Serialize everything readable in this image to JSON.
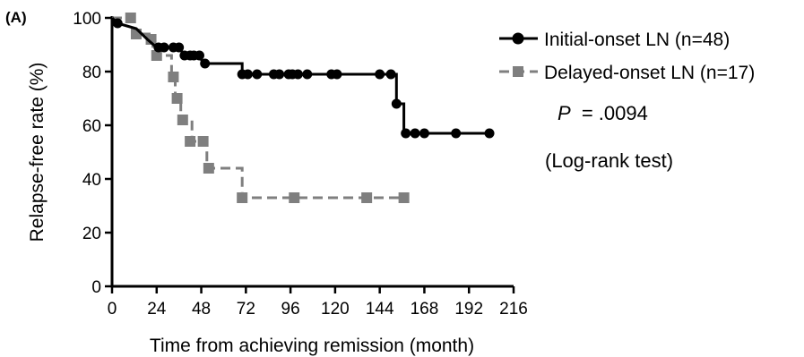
{
  "chart_data": {
    "type": "line",
    "panel_label": "(A)",
    "xlabel": "Time from achieving remission (month)",
    "ylabel": "Relapse-free rate (%)",
    "xlim": [
      0,
      216
    ],
    "ylim": [
      0,
      100
    ],
    "xticks": [
      0,
      24,
      48,
      72,
      96,
      120,
      144,
      168,
      192,
      216
    ],
    "yticks": [
      0,
      20,
      40,
      60,
      80,
      100
    ],
    "legend_position": "top-right",
    "grid": false,
    "series": [
      {
        "name": "Initial-onset LN (n=48)",
        "style": "solid",
        "marker": "circle",
        "color": "#000000",
        "step_points": [
          [
            0,
            100
          ],
          [
            3,
            98
          ],
          [
            13,
            96
          ],
          [
            19,
            92
          ],
          [
            24,
            89
          ],
          [
            35,
            89
          ],
          [
            40,
            86
          ],
          [
            47,
            86
          ],
          [
            49,
            83
          ],
          [
            70,
            83
          ],
          [
            70,
            79
          ],
          [
            153,
            79
          ],
          [
            153,
            68
          ],
          [
            157,
            68
          ],
          [
            157,
            57
          ],
          [
            203,
            57
          ]
        ],
        "censored": [
          [
            3,
            98
          ],
          [
            25,
            89
          ],
          [
            28,
            89
          ],
          [
            33,
            89
          ],
          [
            36,
            89
          ],
          [
            39,
            86
          ],
          [
            42,
            86
          ],
          [
            44,
            86
          ],
          [
            47,
            86
          ],
          [
            50,
            83
          ],
          [
            70,
            79
          ],
          [
            73,
            79
          ],
          [
            78,
            79
          ],
          [
            87,
            79
          ],
          [
            90,
            79
          ],
          [
            95,
            79
          ],
          [
            97,
            79
          ],
          [
            100,
            79
          ],
          [
            105,
            79
          ],
          [
            118,
            79
          ],
          [
            121,
            79
          ],
          [
            144,
            79
          ],
          [
            150,
            79
          ],
          [
            153,
            68
          ],
          [
            158,
            57
          ],
          [
            163,
            57
          ],
          [
            168,
            57
          ],
          [
            185,
            57
          ],
          [
            203,
            57
          ]
        ]
      },
      {
        "name": "Delayed-onset LN (n=17)",
        "style": "dashed",
        "marker": "square",
        "color": "#7f7f7f",
        "step_points": [
          [
            0,
            100
          ],
          [
            11,
            100
          ],
          [
            11,
            94
          ],
          [
            20,
            94
          ],
          [
            20,
            92
          ],
          [
            22,
            92
          ],
          [
            22,
            86
          ],
          [
            32,
            86
          ],
          [
            32,
            78
          ],
          [
            34,
            78
          ],
          [
            34,
            70
          ],
          [
            37,
            70
          ],
          [
            37,
            62
          ],
          [
            43,
            62
          ],
          [
            43,
            54
          ],
          [
            51,
            54
          ],
          [
            51,
            44
          ],
          [
            70,
            44
          ],
          [
            70,
            33
          ],
          [
            157,
            33
          ]
        ],
        "censored": [
          [
            10,
            100
          ],
          [
            13,
            94
          ],
          [
            21,
            92
          ],
          [
            24,
            86
          ],
          [
            33,
            78
          ],
          [
            35,
            70
          ],
          [
            38,
            62
          ],
          [
            42,
            54
          ],
          [
            49,
            54
          ],
          [
            52,
            44
          ],
          [
            70,
            33
          ],
          [
            98,
            33
          ],
          [
            137,
            33
          ],
          [
            157,
            33
          ]
        ]
      }
    ],
    "annotations": [
      {
        "prefix": "P",
        "value": "= .0094"
      },
      {
        "text": "(Log-rank test)"
      }
    ]
  }
}
